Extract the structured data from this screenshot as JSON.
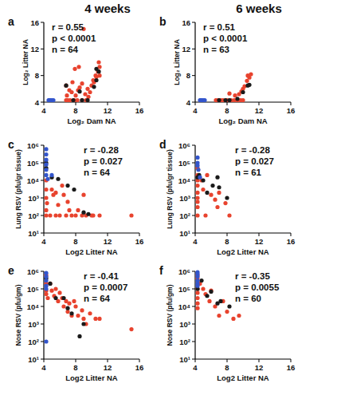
{
  "column_titles": [
    "4 weeks",
    "6 weeks"
  ],
  "chart_data": [
    {
      "type": "scatter",
      "title": "a",
      "x_label": "Log₂ Dam NA",
      "y_label": "Log₂ Litter NA",
      "xlim": [
        4,
        16
      ],
      "ylim": [
        4,
        16
      ],
      "xticks": [
        4,
        8,
        12,
        16
      ],
      "yticks": [
        4,
        8,
        12,
        16
      ],
      "annotations": [
        "r = 0.55",
        "p < 0.0001",
        "n = 64"
      ],
      "series": [
        {
          "color": "#e8432e",
          "x": [
            6.8,
            7.0,
            7.3,
            7.8,
            8.2,
            8.8,
            9.3,
            6.9,
            7.2,
            7.5,
            8.0,
            8.3,
            6.8,
            7.6,
            8.5,
            7.9,
            8.4,
            8.8,
            9.2,
            9.5,
            9.8,
            10.0,
            10.2,
            10.5,
            10.8,
            11.0,
            10.9,
            10.6,
            11.0,
            9.0,
            9.6,
            10.3
          ],
          "values": [
            4.3,
            4.3,
            4.3,
            4.3,
            4.3,
            4.3,
            4.3,
            5.0,
            5.8,
            5.5,
            5.0,
            5.8,
            6.5,
            7.0,
            6.2,
            9.0,
            9.3,
            6.8,
            5.2,
            6.0,
            5.5,
            6.5,
            7.3,
            8.0,
            8.6,
            9.3,
            10.0,
            7.8,
            8.0,
            15.0,
            4.8,
            7.0
          ]
        },
        {
          "color": "#1a1a1a",
          "x": [
            6.8,
            7.7,
            8.8,
            9.5,
            8.5,
            10.3,
            10.6,
            10.9,
            10.6
          ],
          "values": [
            6.5,
            4.3,
            4.3,
            4.3,
            5.6,
            6.3,
            7.3,
            8.6,
            9.0
          ]
        },
        {
          "color": "#3355cc",
          "x": [
            4.6,
            4.8,
            5.0,
            5.2,
            4.7
          ],
          "values": [
            4.3,
            4.3,
            4.3,
            4.3,
            4.3
          ]
        }
      ]
    },
    {
      "type": "scatter",
      "title": "b",
      "x_label": "Log₂ Dam NA",
      "y_label": "Log₂ Litter NA",
      "xlim": [
        4,
        16
      ],
      "ylim": [
        4,
        16
      ],
      "xticks": [
        4,
        8,
        12,
        16
      ],
      "yticks": [
        4,
        8,
        12,
        16
      ],
      "annotations": [
        "r = 0.51",
        "p < 0.0001",
        "n = 63"
      ],
      "series": [
        {
          "color": "#e8432e",
          "x": [
            6.6,
            6.9,
            7.2,
            7.5,
            8.0,
            8.5,
            8.9,
            9.3,
            9.7,
            10.0,
            9.0,
            9.5,
            9.8,
            10.2,
            10.5,
            10.8,
            11.0,
            10.6,
            8.3,
            10.0
          ],
          "values": [
            4.3,
            4.3,
            4.3,
            4.3,
            4.3,
            4.3,
            4.3,
            4.3,
            4.3,
            4.3,
            5.0,
            5.2,
            5.6,
            6.4,
            7.2,
            7.7,
            8.2,
            8.0,
            5.3,
            6.0
          ]
        },
        {
          "color": "#1a1a1a",
          "x": [
            7.0,
            7.8,
            8.3,
            9.3,
            10.0,
            10.6,
            10.8
          ],
          "values": [
            4.3,
            4.3,
            4.3,
            4.5,
            5.5,
            6.5,
            6.6
          ]
        },
        {
          "color": "#3355cc",
          "x": [
            4.6,
            4.8,
            5.0,
            5.2,
            4.7
          ],
          "values": [
            4.3,
            4.3,
            4.3,
            4.3,
            4.3
          ]
        }
      ]
    },
    {
      "type": "scatter",
      "title": "c",
      "x_label": "Log2 Litter NA",
      "y_label": "Lung RSV (pfu/gr tissue)",
      "log": "y",
      "xlim": [
        4,
        16
      ],
      "ylim": [
        10,
        1000000
      ],
      "xticks": [
        4,
        8,
        12,
        16
      ],
      "yticks": [
        {
          "value": 10,
          "label": "10¹"
        },
        {
          "value": 100,
          "label": "10²"
        },
        {
          "value": 1000,
          "label": "10³"
        },
        {
          "value": 10000,
          "label": "10⁴"
        },
        {
          "value": 100000,
          "label": "10⁵"
        },
        {
          "value": 1000000,
          "label": "10⁶"
        }
      ],
      "annotations": [
        "r = -0.28",
        "p = 0.027",
        "n = 64"
      ],
      "series": [
        {
          "color": "#e8432e",
          "x": [
            4.3,
            4.3,
            4.3,
            4.4,
            4.3,
            4.8,
            5.0,
            5.2,
            5.5,
            5.8,
            6.0,
            5.5,
            6.3,
            6.5,
            6.8,
            7.0,
            7.2,
            7.5,
            8.0,
            8.3,
            8.8,
            9.0,
            9.3,
            10.0,
            10.2,
            11.0,
            15.0,
            4.3
          ],
          "values": [
            10000,
            3000,
            1000,
            500,
            100,
            100,
            3000,
            1500,
            2000,
            400,
            100,
            100,
            5000,
            1500,
            100,
            600,
            200,
            100,
            100,
            200,
            100,
            1500,
            100,
            100,
            100,
            100,
            100,
            200
          ]
        },
        {
          "color": "#1a1a1a",
          "x": [
            4.3,
            4.3,
            5.0,
            5.8,
            7.0,
            7.8,
            9.0,
            9.6
          ],
          "values": [
            100000,
            50000,
            15000,
            12000,
            5000,
            3000,
            150,
            120
          ]
        },
        {
          "color": "#3355cc",
          "x": [
            4.3,
            4.3,
            4.3,
            4.3,
            4.3,
            4.5,
            4.3,
            5.0
          ],
          "values": [
            600000,
            300000,
            150000,
            80000,
            20000,
            12000,
            40000,
            20000
          ]
        }
      ]
    },
    {
      "type": "scatter",
      "title": "d",
      "x_label": "Log2 Litter NA",
      "y_label": "Lung RSV (pfu/gr tissue)",
      "log": "y",
      "xlim": [
        4,
        16
      ],
      "ylim": [
        10,
        1000000
      ],
      "xticks": [
        4,
        8,
        12,
        16
      ],
      "yticks": [
        {
          "value": 10,
          "label": "10¹"
        },
        {
          "value": 100,
          "label": "10²"
        },
        {
          "value": 1000,
          "label": "10³"
        },
        {
          "value": 10000,
          "label": "10⁴"
        },
        {
          "value": 100000,
          "label": "10⁵"
        },
        {
          "value": 1000000,
          "label": "10⁶"
        }
      ],
      "annotations": [
        "r = -0.28",
        "p = 0.027",
        "n = 61"
      ],
      "series": [
        {
          "color": "#e8432e",
          "x": [
            4.3,
            4.3,
            4.3,
            4.3,
            4.3,
            4.3,
            4.3,
            4.3,
            4.3,
            4.8,
            5.0,
            5.5,
            6.0,
            6.5,
            7.0,
            7.8,
            8.3,
            6.8,
            5.3
          ],
          "values": [
            50000,
            20000,
            10000,
            5000,
            2000,
            1000,
            600,
            300,
            100,
            10000,
            3000,
            20000,
            1500,
            800,
            2000,
            500,
            100,
            300,
            100
          ]
        },
        {
          "color": "#1a1a1a",
          "x": [
            4.3,
            4.5,
            5.0,
            5.5,
            6.2,
            6.8,
            7.0,
            8.0
          ],
          "values": [
            15000,
            20000,
            10000,
            2000,
            5000,
            15000,
            4000,
            1000
          ]
        },
        {
          "color": "#3355cc",
          "x": [
            4.3,
            4.3,
            4.3,
            4.4,
            4.6
          ],
          "values": [
            100000,
            200000,
            70000,
            40000,
            15000
          ]
        }
      ]
    },
    {
      "type": "scatter",
      "title": "e",
      "x_label": "Log2 Litter NA",
      "y_label": "Nose RSV (pfu/gm)",
      "log": "y",
      "xlim": [
        4,
        16
      ],
      "ylim": [
        10,
        1000000
      ],
      "xticks": [
        4,
        8,
        12,
        16
      ],
      "yticks": [
        {
          "value": 10,
          "label": "10¹"
        },
        {
          "value": 100,
          "label": "10²"
        },
        {
          "value": 1000,
          "label": "10³"
        },
        {
          "value": 10000,
          "label": "10⁴"
        },
        {
          "value": 100000,
          "label": "10⁵"
        },
        {
          "value": 1000000,
          "label": "10⁶"
        }
      ],
      "annotations": [
        "r = -0.41",
        "p = 0.0007",
        "n = 64"
      ],
      "series": [
        {
          "color": "#e8432e",
          "x": [
            4.3,
            4.3,
            4.3,
            4.3,
            4.5,
            4.8,
            5.0,
            5.3,
            5.5,
            5.8,
            6.0,
            6.3,
            6.5,
            6.8,
            7.0,
            7.2,
            7.5,
            7.8,
            8.0,
            8.3,
            8.8,
            9.0,
            9.3,
            9.8,
            10.5,
            11.0,
            15.0
          ],
          "values": [
            600000,
            200000,
            80000,
            50000,
            30000,
            200000,
            80000,
            40000,
            100000,
            20000,
            60000,
            30000,
            10000,
            20000,
            5000,
            15000,
            3000,
            20000,
            10000,
            3000,
            6000,
            2000,
            1000,
            4000,
            2000,
            2000,
            500
          ]
        },
        {
          "color": "#1a1a1a",
          "x": [
            4.3,
            4.8,
            5.5,
            6.5,
            7.0,
            7.5,
            8.5,
            9.0
          ],
          "values": [
            400000,
            200000,
            30000,
            30000,
            8000,
            4000,
            200,
            1000
          ]
        },
        {
          "color": "#3355cc",
          "x": [
            4.3,
            4.3,
            4.3,
            4.3,
            4.3,
            4.3
          ],
          "values": [
            800000,
            500000,
            300000,
            150000,
            100000,
            100
          ]
        }
      ]
    },
    {
      "type": "scatter",
      "title": "f",
      "x_label": "Log2 Litter NA",
      "y_label": "Nose RSV (pfu/gm)",
      "log": "y",
      "xlim": [
        4,
        16
      ],
      "ylim": [
        10,
        1000000
      ],
      "xticks": [
        4,
        8,
        12,
        16
      ],
      "yticks": [
        {
          "value": 10,
          "label": "10¹"
        },
        {
          "value": 100,
          "label": "10²"
        },
        {
          "value": 1000,
          "label": "10³"
        },
        {
          "value": 10000,
          "label": "10⁴"
        },
        {
          "value": 100000,
          "label": "10⁵"
        },
        {
          "value": 1000000,
          "label": "10⁶"
        }
      ],
      "annotations": [
        "r = -0.35",
        "p = 0.0055",
        "n = 60"
      ],
      "series": [
        {
          "color": "#e8432e",
          "x": [
            4.3,
            4.3,
            4.3,
            4.3,
            4.3,
            4.3,
            4.3,
            4.6,
            5.0,
            5.3,
            5.8,
            6.0,
            6.5,
            7.0,
            7.5,
            8.0,
            8.8,
            9.5
          ],
          "values": [
            600000,
            400000,
            100000,
            60000,
            30000,
            15000,
            8000,
            200000,
            100000,
            50000,
            20000,
            80000,
            10000,
            3000,
            20000,
            5000,
            2000,
            3000
          ]
        },
        {
          "color": "#1a1a1a",
          "x": [
            4.3,
            4.8,
            5.5,
            6.0,
            6.8,
            7.2,
            8.3
          ],
          "values": [
            100000,
            300000,
            40000,
            70000,
            15000,
            20000,
            10000
          ]
        },
        {
          "color": "#3355cc",
          "x": [
            4.3,
            4.3,
            4.3,
            4.3,
            4.3,
            4.3
          ],
          "values": [
            900000,
            700000,
            500000,
            300000,
            200000,
            150000
          ]
        }
      ]
    }
  ]
}
